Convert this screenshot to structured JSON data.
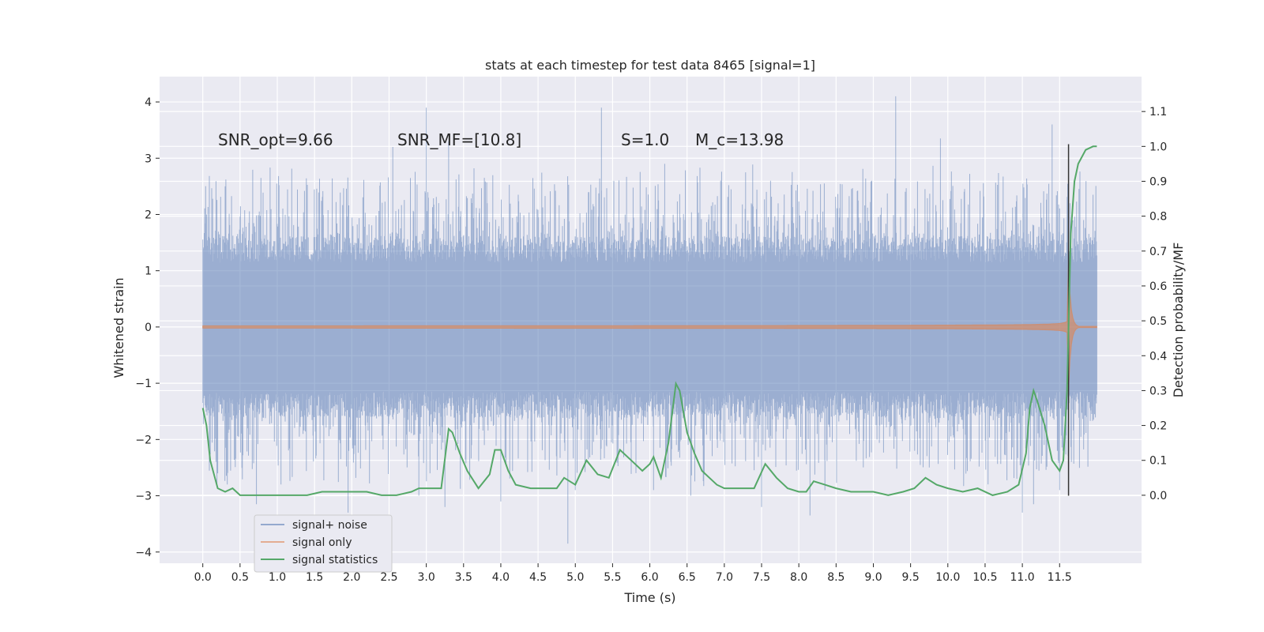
{
  "chart_data": {
    "type": "line",
    "title": "stats at each timestep for test data 8465 [signal=1]",
    "xlabel": "Time (s)",
    "ylabel": "Whitened strain",
    "y2label": "Detection probability/MF",
    "xlim": [
      -0.58,
      12.6
    ],
    "ylim": [
      -4.2,
      4.45
    ],
    "y2lim": [
      -0.195,
      1.2
    ],
    "xticks": [
      0.0,
      0.5,
      1.0,
      1.5,
      2.0,
      2.5,
      3.0,
      3.5,
      4.0,
      4.5,
      5.0,
      5.5,
      6.0,
      6.5,
      7.0,
      7.5,
      8.0,
      8.5,
      9.0,
      9.5,
      10.0,
      10.5,
      11.0,
      11.5
    ],
    "xtick_labels": [
      "0.0",
      "0.5",
      "1.0",
      "1.5",
      "2.0",
      "2.5",
      "3.0",
      "3.5",
      "4.0",
      "4.5",
      "5.0",
      "5.5",
      "6.0",
      "6.5",
      "7.0",
      "7.5",
      "8.0",
      "8.5",
      "9.0",
      "9.5",
      "10.0",
      "10.5",
      "11.0",
      "11.5"
    ],
    "yticks": [
      -4,
      -3,
      -2,
      -1,
      0,
      1,
      2,
      3,
      4
    ],
    "ytick_labels": [
      "−4",
      "−3",
      "−2",
      "−1",
      "0",
      "1",
      "2",
      "3",
      "4"
    ],
    "y2ticks": [
      0.0,
      0.1,
      0.2,
      0.3,
      0.4,
      0.5,
      0.6,
      0.7,
      0.8,
      0.9,
      1.0,
      1.1
    ],
    "y2tick_labels": [
      "0.0",
      "0.1",
      "0.2",
      "0.3",
      "0.4",
      "0.5",
      "0.6",
      "0.7",
      "0.8",
      "0.9",
      "1.0",
      "1.1"
    ],
    "grid": true,
    "legend_position": "lower-left",
    "annotations": [
      {
        "text": "SNR_opt=9.66",
        "x": 0.2,
        "y": 3.3
      },
      {
        "text": "SNR_MF=[10.8]",
        "x": 2.6,
        "y": 3.3
      },
      {
        "text": "S=1.0",
        "x": 5.6,
        "y": 3.3
      },
      {
        "text": "M_c=13.98",
        "x": 6.6,
        "y": 3.3
      }
    ],
    "merger_line": {
      "x": 11.62,
      "y_range": [
        -3.0,
        3.25
      ]
    },
    "series": [
      {
        "name": "signal+ noise",
        "kind": "noise_band",
        "color": "#4c72b0",
        "x_range": [
          0.0,
          12.0
        ],
        "typical_amplitude": 1.35,
        "peaks": [
          [
            0.05,
            2.0
          ],
          [
            0.08,
            -1.1
          ],
          [
            0.2,
            -2.6
          ],
          [
            0.3,
            2.5
          ],
          [
            0.72,
            -3.15
          ],
          [
            0.78,
            2.65
          ],
          [
            1.05,
            -2.8
          ],
          [
            1.95,
            -3.3
          ],
          [
            2.55,
            3.2
          ],
          [
            2.9,
            -3.0
          ],
          [
            3.0,
            3.9
          ],
          [
            3.05,
            -2.6
          ],
          [
            3.25,
            -3.2
          ],
          [
            3.3,
            3.3
          ],
          [
            4.0,
            -3.1
          ],
          [
            4.9,
            -3.85
          ],
          [
            5.35,
            3.9
          ],
          [
            5.0,
            -2.9
          ],
          [
            6.05,
            -2.9
          ],
          [
            6.2,
            2.9
          ],
          [
            6.55,
            -3.0
          ],
          [
            7.5,
            -3.2
          ],
          [
            8.15,
            -3.35
          ],
          [
            8.35,
            -2.9
          ],
          [
            9.3,
            4.1
          ],
          [
            9.9,
            3.35
          ],
          [
            11.0,
            -3.3
          ],
          [
            11.15,
            -3.15
          ],
          [
            11.4,
            3.6
          ],
          [
            11.5,
            -2.9
          ]
        ]
      },
      {
        "name": "signal only",
        "kind": "chirp",
        "color": "#dd8452",
        "x_range": [
          0.0,
          12.0
        ],
        "merger_time": 11.62,
        "peak_amplitude": 1.15
      },
      {
        "name": "signal statistics",
        "kind": "line",
        "color": "#55a868",
        "axis": "right",
        "x": [
          0.0,
          0.05,
          0.1,
          0.2,
          0.3,
          0.4,
          0.5,
          0.6,
          0.8,
          1.0,
          1.2,
          1.4,
          1.6,
          1.8,
          2.0,
          2.2,
          2.4,
          2.6,
          2.8,
          2.9,
          3.0,
          3.1,
          3.2,
          3.3,
          3.35,
          3.45,
          3.55,
          3.7,
          3.85,
          3.92,
          4.0,
          4.1,
          4.2,
          4.4,
          4.6,
          4.75,
          4.85,
          5.0,
          5.15,
          5.3,
          5.45,
          5.6,
          5.75,
          5.9,
          6.0,
          6.05,
          6.15,
          6.25,
          6.35,
          6.4,
          6.5,
          6.6,
          6.7,
          6.8,
          6.9,
          7.0,
          7.1,
          7.25,
          7.4,
          7.55,
          7.7,
          7.85,
          8.0,
          8.1,
          8.2,
          8.35,
          8.5,
          8.7,
          9.0,
          9.2,
          9.4,
          9.55,
          9.7,
          9.85,
          10.0,
          10.2,
          10.4,
          10.6,
          10.8,
          10.95,
          11.05,
          11.1,
          11.15,
          11.2,
          11.3,
          11.4,
          11.5,
          11.55,
          11.6,
          11.65,
          11.7,
          11.75,
          11.85,
          11.95,
          12.0
        ],
        "y": [
          0.25,
          0.2,
          0.1,
          0.02,
          0.01,
          0.02,
          0.0,
          0.0,
          0.0,
          0.0,
          0.0,
          0.0,
          0.01,
          0.01,
          0.01,
          0.01,
          0.0,
          0.0,
          0.01,
          0.02,
          0.02,
          0.02,
          0.02,
          0.19,
          0.18,
          0.12,
          0.07,
          0.02,
          0.06,
          0.13,
          0.13,
          0.07,
          0.03,
          0.02,
          0.02,
          0.02,
          0.05,
          0.03,
          0.1,
          0.06,
          0.05,
          0.13,
          0.1,
          0.07,
          0.09,
          0.11,
          0.05,
          0.15,
          0.32,
          0.3,
          0.18,
          0.12,
          0.07,
          0.05,
          0.03,
          0.02,
          0.02,
          0.02,
          0.02,
          0.09,
          0.05,
          0.02,
          0.01,
          0.01,
          0.04,
          0.03,
          0.02,
          0.01,
          0.01,
          0.0,
          0.01,
          0.02,
          0.05,
          0.03,
          0.02,
          0.01,
          0.02,
          0.0,
          0.01,
          0.03,
          0.12,
          0.25,
          0.3,
          0.27,
          0.2,
          0.1,
          0.07,
          0.1,
          0.3,
          0.75,
          0.9,
          0.95,
          0.99,
          1.0,
          1.0
        ]
      }
    ]
  }
}
